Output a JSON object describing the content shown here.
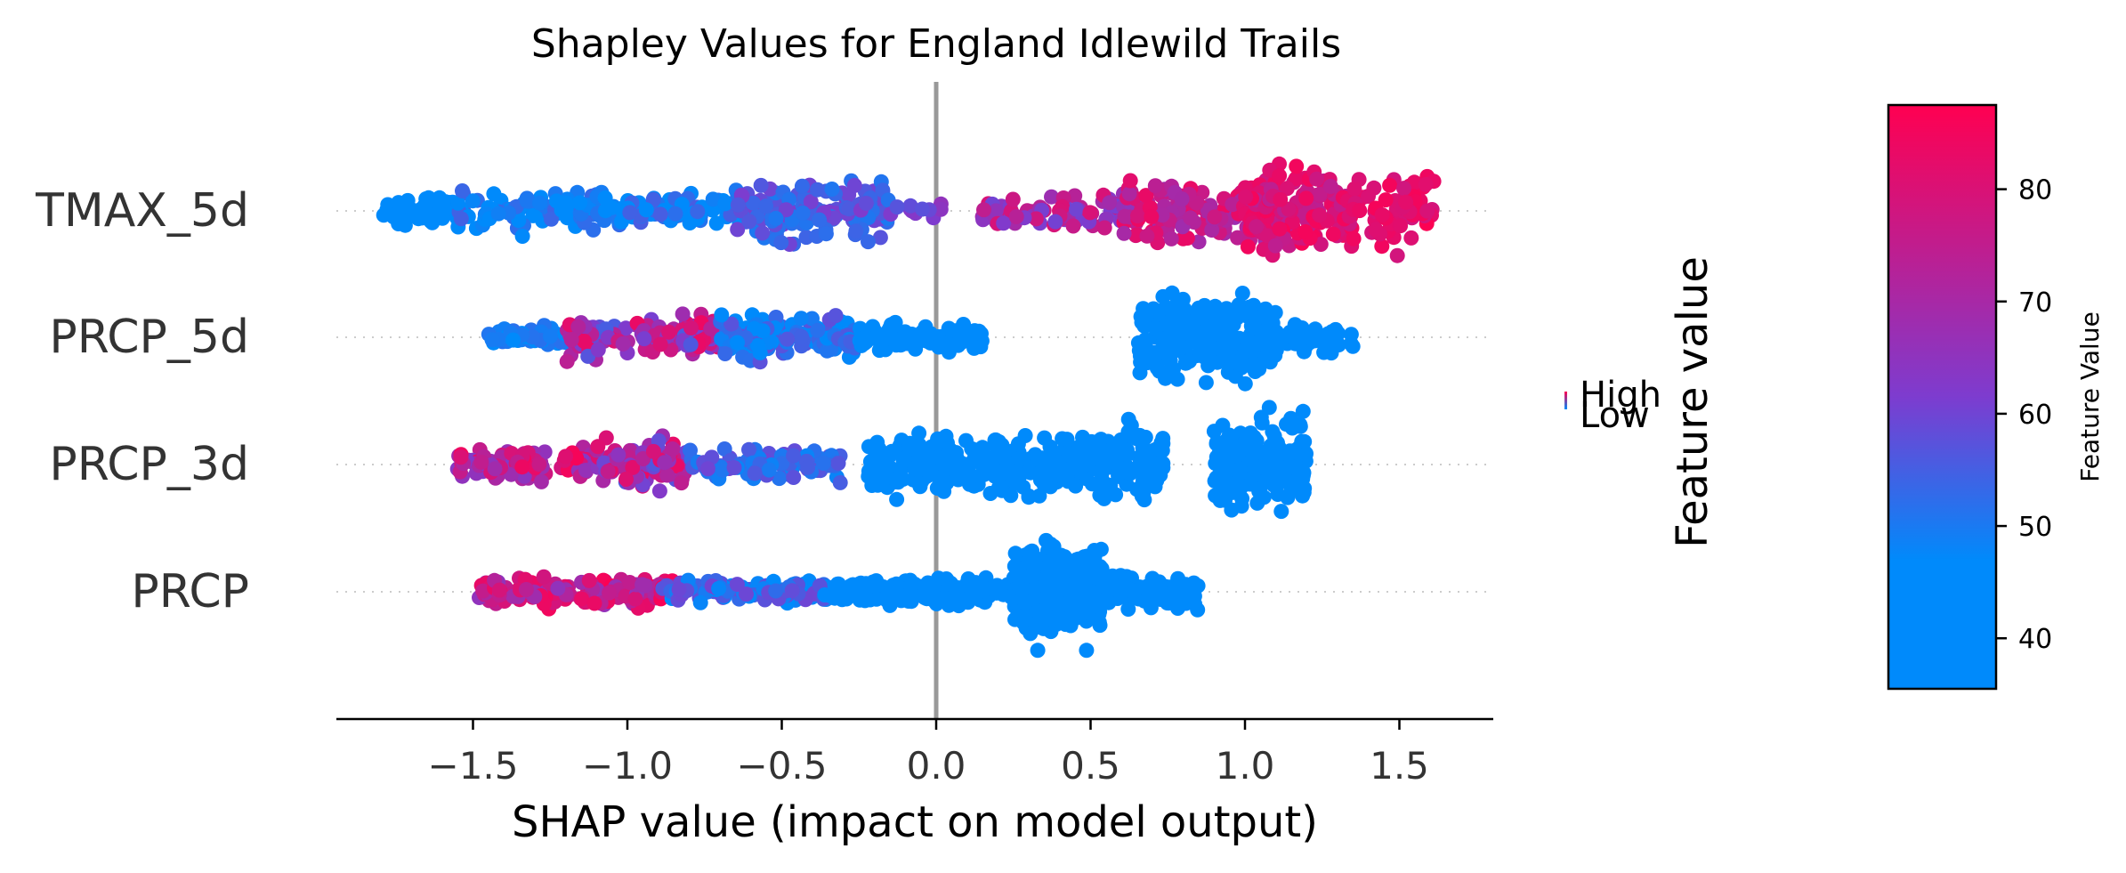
{
  "chart_data": {
    "type": "scatter",
    "title": "Shapley Values for England Idlewild Trails",
    "xlabel": "SHAP value (impact on model output)",
    "xlim": [
      -1.95,
      1.8
    ],
    "xticks": [
      -1.5,
      -1.0,
      -0.5,
      0.0,
      0.5,
      1.0,
      1.5
    ],
    "xtick_labels": [
      "−1.5",
      "−1.0",
      "−0.5",
      "0.0",
      "0.5",
      "1.0",
      "1.5"
    ],
    "features": [
      "TMAX_5d",
      "PRCP_5d",
      "PRCP_3d",
      "PRCP"
    ],
    "zero_line": 0.0,
    "legend": {
      "high_label": "High",
      "low_label": "Low",
      "title": "Feature value"
    },
    "colorbar": {
      "label": "Feature Value",
      "range": [
        35.5,
        87.5
      ],
      "ticks": [
        40,
        50,
        60,
        70,
        80
      ],
      "low_color": "#008afb",
      "mid_color": "#7d3ccf",
      "high_color": "#ff0051"
    },
    "series": [
      {
        "feature": "TMAX_5d",
        "clusters": [
          {
            "x": [
              -1.8,
              -1.55
            ],
            "v": [
              40,
              46
            ],
            "n": 60,
            "w": 0.35
          },
          {
            "x": [
              -1.55,
              -1.1
            ],
            "v": [
              40,
              55
            ],
            "n": 90,
            "w": 0.5
          },
          {
            "x": [
              -1.1,
              -0.6
            ],
            "v": [
              42,
              56
            ],
            "n": 100,
            "w": 0.4
          },
          {
            "x": [
              -0.65,
              -0.15
            ],
            "v": [
              50,
              62
            ],
            "n": 140,
            "w": 0.75
          },
          {
            "x": [
              -0.15,
              0.05
            ],
            "v": [
              55,
              66
            ],
            "n": 12,
            "w": 0.2
          },
          {
            "x": [
              0.15,
              0.65
            ],
            "v": [
              60,
              80
            ],
            "n": 90,
            "w": 0.45
          },
          {
            "x": [
              0.6,
              1.1
            ],
            "v": [
              68,
              84
            ],
            "n": 160,
            "w": 0.75
          },
          {
            "x": [
              1.0,
              1.35
            ],
            "v": [
              74,
              86
            ],
            "n": 170,
            "w": 0.95
          },
          {
            "x": [
              1.35,
              1.62
            ],
            "v": [
              78,
              87
            ],
            "n": 60,
            "w": 0.9
          }
        ]
      },
      {
        "feature": "PRCP_5d",
        "clusters": [
          {
            "x": [
              -1.45,
              -1.2
            ],
            "v": [
              44,
              52
            ],
            "n": 45,
            "w": 0.3
          },
          {
            "x": [
              -1.2,
              -0.7
            ],
            "v": [
              55,
              85
            ],
            "n": 130,
            "w": 0.55
          },
          {
            "x": [
              -0.7,
              -0.25
            ],
            "v": [
              44,
              58
            ],
            "n": 140,
            "w": 0.55
          },
          {
            "x": [
              -0.25,
              0.15
            ],
            "v": [
              38,
              45
            ],
            "n": 110,
            "w": 0.35
          },
          {
            "x": [
              0.65,
              1.1
            ],
            "v": [
              37,
              43
            ],
            "n": 300,
            "w": 1.0
          },
          {
            "x": [
              1.05,
              1.35
            ],
            "v": [
              37,
              44
            ],
            "n": 50,
            "w": 0.35
          }
        ]
      },
      {
        "feature": "PRCP_3d",
        "clusters": [
          {
            "x": [
              -1.55,
              -1.1
            ],
            "v": [
              62,
              86
            ],
            "n": 110,
            "w": 0.35
          },
          {
            "x": [
              -1.1,
              -0.8
            ],
            "v": [
              55,
              84
            ],
            "n": 110,
            "w": 0.6
          },
          {
            "x": [
              -0.8,
              -0.3
            ],
            "v": [
              48,
              60
            ],
            "n": 90,
            "w": 0.4
          },
          {
            "x": [
              -0.22,
              0.5
            ],
            "v": [
              37,
              45
            ],
            "n": 260,
            "w": 0.75
          },
          {
            "x": [
              0.5,
              0.75
            ],
            "v": [
              37,
              43
            ],
            "n": 110,
            "w": 0.95
          },
          {
            "x": [
              0.9,
              1.2
            ],
            "v": [
              37,
              43
            ],
            "n": 200,
            "w": 1.1
          }
        ]
      },
      {
        "feature": "PRCP",
        "clusters": [
          {
            "x": [
              -1.48,
              -0.85
            ],
            "v": [
              65,
              87
            ],
            "n": 160,
            "w": 0.35
          },
          {
            "x": [
              -0.9,
              -0.35
            ],
            "v": [
              45,
              60
            ],
            "n": 110,
            "w": 0.3
          },
          {
            "x": [
              -0.35,
              0.25
            ],
            "v": [
              37,
              46
            ],
            "n": 160,
            "w": 0.35
          },
          {
            "x": [
              0.25,
              0.55
            ],
            "v": [
              37,
              42
            ],
            "n": 320,
            "w": 1.1
          },
          {
            "x": [
              0.55,
              0.85
            ],
            "v": [
              37,
              42
            ],
            "n": 90,
            "w": 0.4
          }
        ]
      }
    ]
  }
}
